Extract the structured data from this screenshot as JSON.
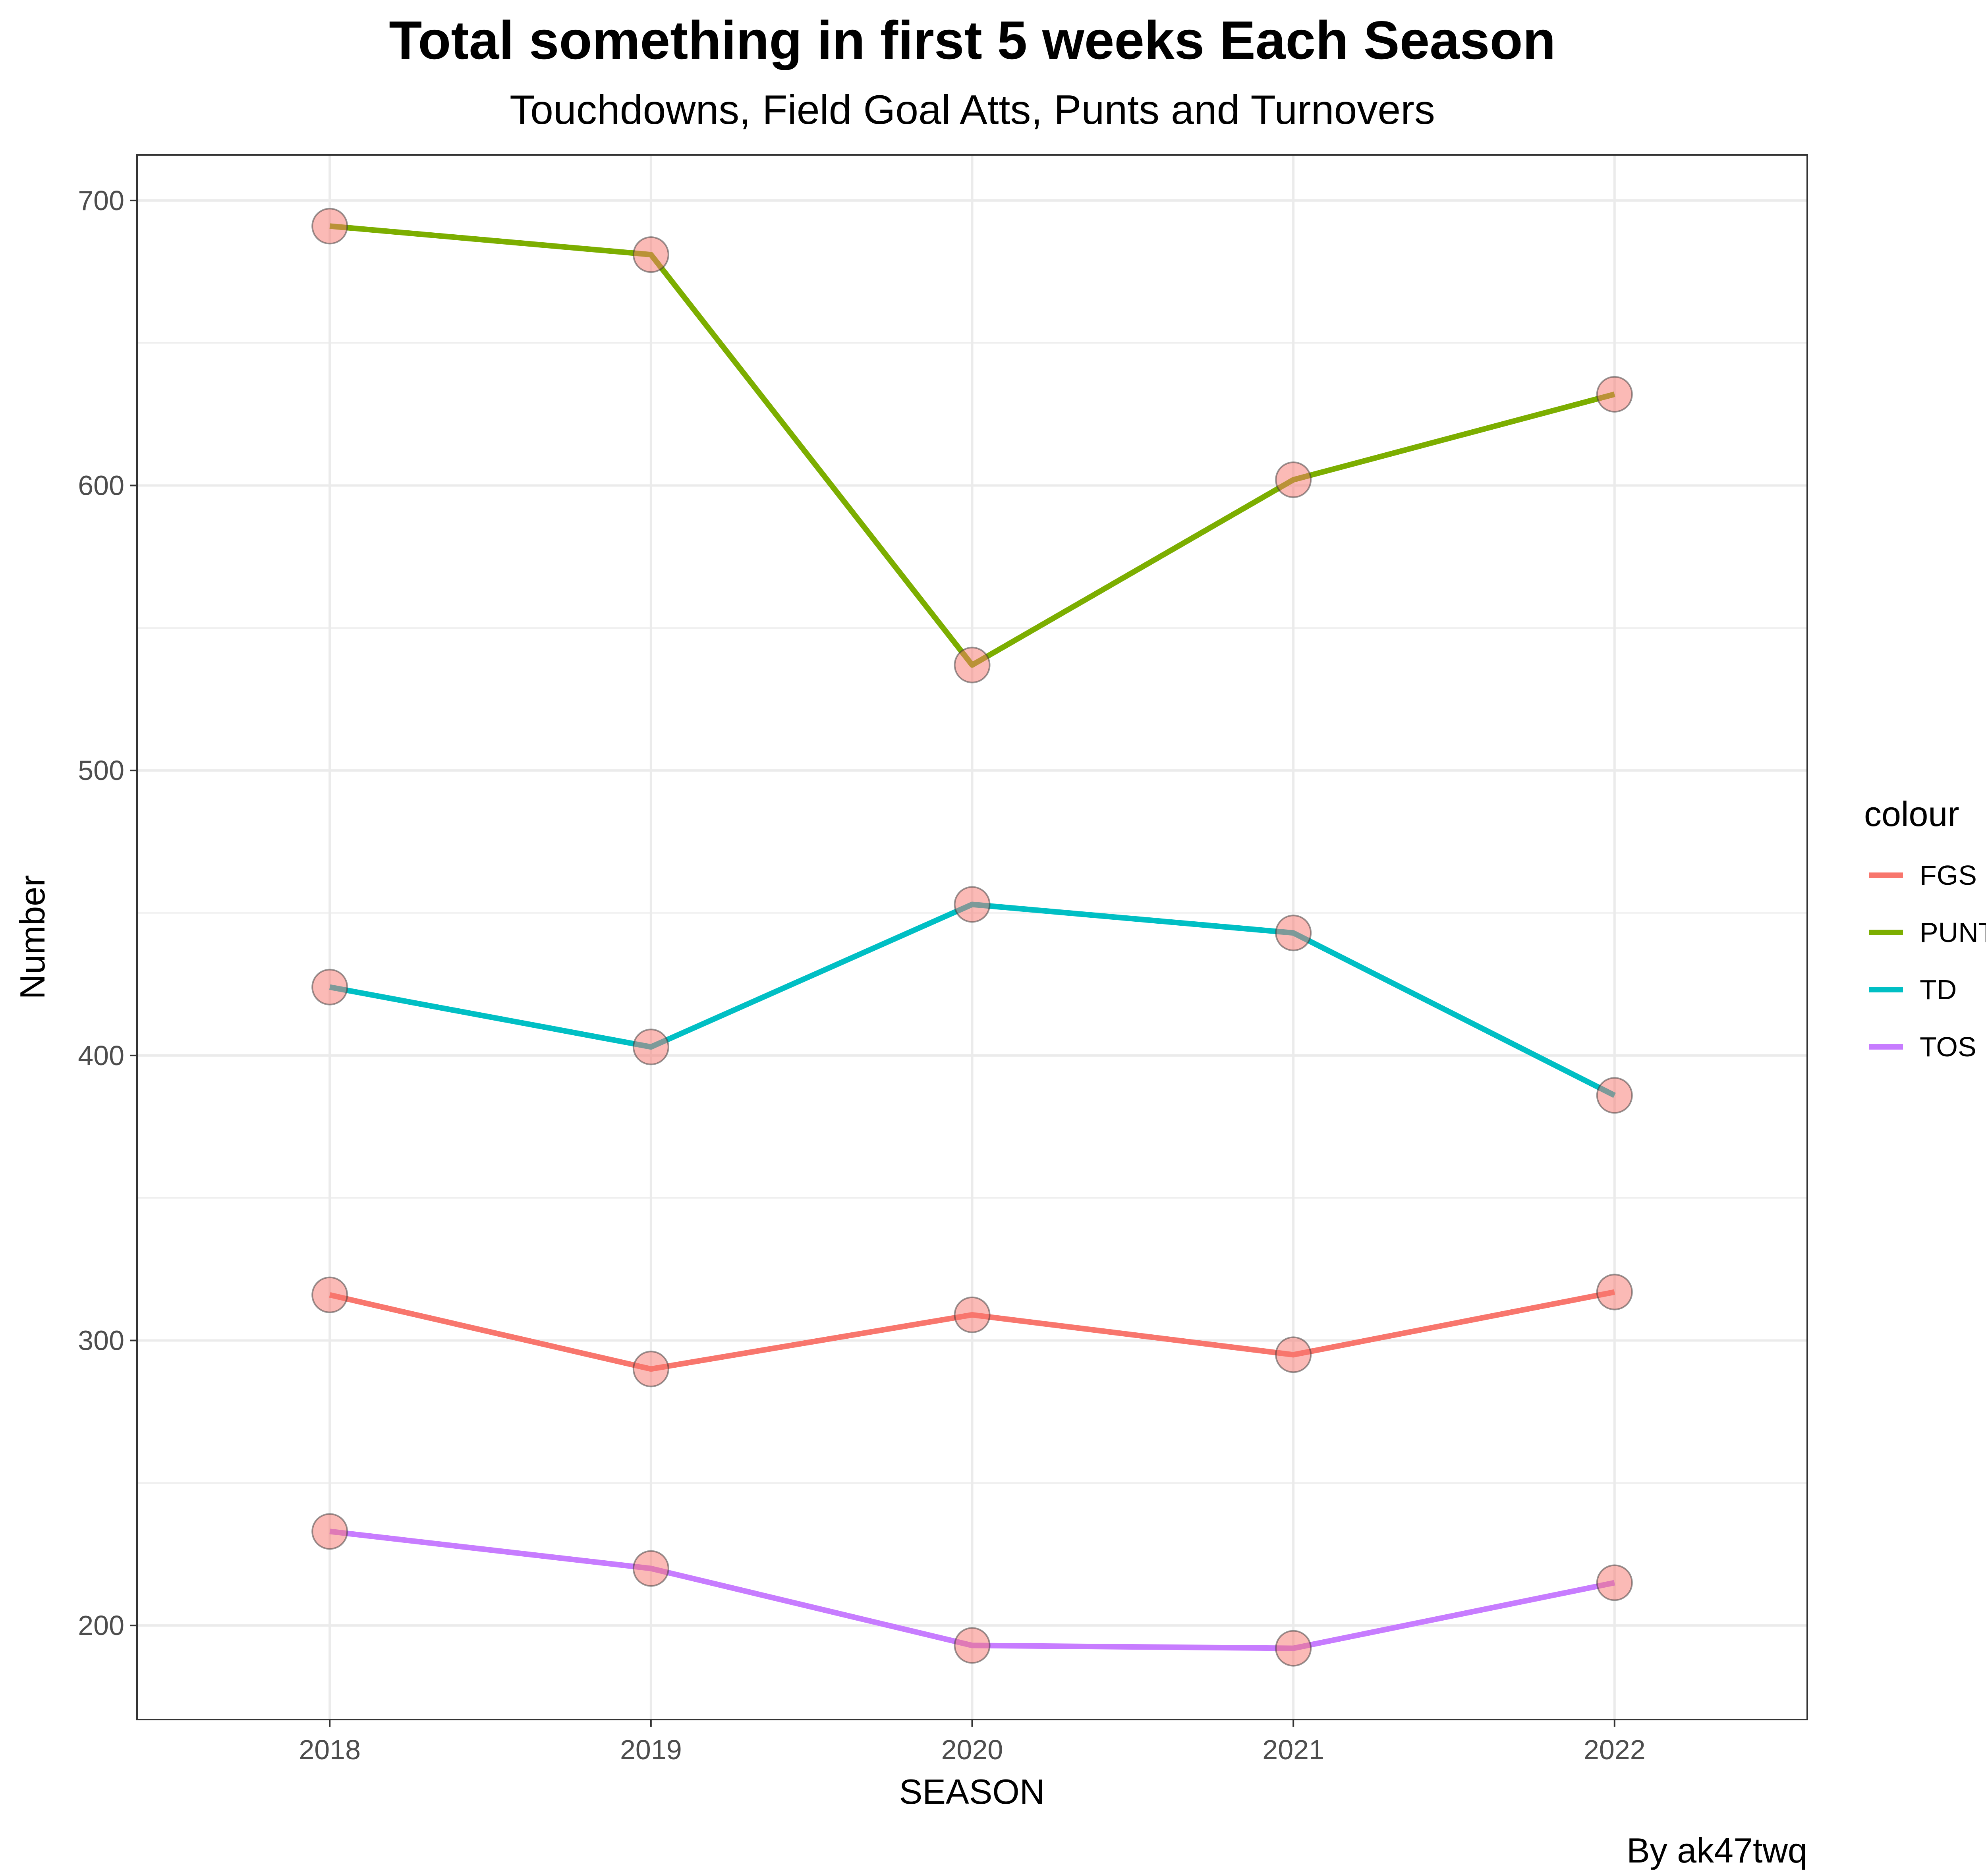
{
  "chart_data": {
    "type": "line",
    "title": "Total something in first 5 weeks Each Season",
    "subtitle": "Touchdowns, Field Goal Atts, Punts and Turnovers",
    "xlabel": "SEASON",
    "ylabel": "Number",
    "caption": "By ak47twq",
    "x": [
      "2018",
      "2019",
      "2020",
      "2021",
      "2022"
    ],
    "ylim": [
      167,
      716
    ],
    "yticks": [
      "200",
      "300",
      "400",
      "500",
      "600",
      "700"
    ],
    "grid": true,
    "legend": {
      "title": "colour",
      "placement": "right"
    },
    "point_color": "#F8766D",
    "series": [
      {
        "name": "FGS",
        "color": "#F8766D",
        "values": [
          316,
          290,
          309,
          295,
          317
        ]
      },
      {
        "name": "PUNTS",
        "color": "#7CAE00",
        "values": [
          691,
          681,
          537,
          602,
          632
        ]
      },
      {
        "name": "TD",
        "color": "#00BFC4",
        "values": [
          424,
          403,
          453,
          443,
          386
        ]
      },
      {
        "name": "TOS",
        "color": "#C77CFF",
        "values": [
          233,
          220,
          193,
          192,
          215
        ]
      }
    ]
  }
}
